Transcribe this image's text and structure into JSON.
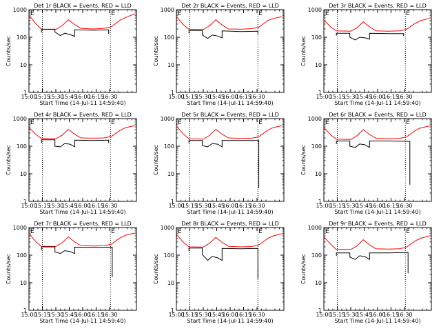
{
  "figure": {
    "background": "#ffffff",
    "events_color": "#000000",
    "lld_color": "#ff0000"
  },
  "chart_data": [
    {
      "type": "line",
      "title": "Det 1r BLACK = Events, RED = LLD",
      "xlabel": "Start Time (14-Jul-11 14:59:40)",
      "ylabel": "Counts/sec",
      "xtick_labels": [
        "15:00",
        "15:15",
        "15:30",
        "15:45",
        "16:00",
        "16:15",
        "16:30"
      ],
      "ytick_labels": [
        "1",
        "10",
        "100",
        "1000"
      ],
      "ylim": [
        1,
        1000
      ],
      "y_scale": "log",
      "x_minutes": [
        0,
        120
      ],
      "markers": [
        "E",
        "E"
      ],
      "vlines": [
        15,
        91
      ],
      "series": [
        {
          "color": "#ff0000",
          "x": [
            0,
            8,
            14,
            30,
            37,
            44,
            51,
            58,
            72,
            84,
            92,
            102,
            108,
            118
          ],
          "y": [
            630,
            300,
            195,
            190,
            260,
            430,
            290,
            210,
            200,
            210,
            240,
            420,
            520,
            700
          ]
        },
        {
          "color": "#000000",
          "x": [
            14,
            14.01,
            29,
            29.01,
            35,
            40,
            46,
            51,
            51.01,
            72,
            89,
            89.01
          ],
          "y": [
            150,
            195,
            195,
            155,
            115,
            140,
            125,
            108,
            185,
            180,
            185,
            130
          ]
        }
      ]
    },
    {
      "type": "line",
      "title": "Det 2r BLACK = Events, RED = LLD",
      "xlabel": "Start Time (14-Jul-11 14:59:40)",
      "ylabel": "Counts/sec",
      "xtick_labels": [
        "15:00",
        "15:15",
        "15:30",
        "15:45",
        "16:00",
        "16:15",
        "16:30"
      ],
      "ytick_labels": [
        "1",
        "10",
        "100",
        "1000"
      ],
      "ylim": [
        1,
        1000
      ],
      "y_scale": "log",
      "x_minutes": [
        0,
        120
      ],
      "markers": [
        "E",
        "E"
      ],
      "vlines": [
        15,
        91
      ],
      "series": [
        {
          "color": "#ff0000",
          "x": [
            0,
            8,
            14,
            30,
            37,
            44,
            51,
            58,
            72,
            84,
            92,
            102,
            108,
            118
          ],
          "y": [
            560,
            280,
            195,
            190,
            260,
            430,
            280,
            200,
            195,
            205,
            230,
            400,
            480,
            560
          ]
        },
        {
          "color": "#000000",
          "x": [
            14,
            14.01,
            29,
            29.01,
            35,
            40,
            46,
            51,
            51.01,
            72,
            91,
            91.01
          ],
          "y": [
            140,
            175,
            175,
            120,
            90,
            120,
            110,
            95,
            170,
            160,
            165,
            130
          ]
        }
      ]
    },
    {
      "type": "line",
      "title": "Det 3r BLACK = Events, RED = LLD",
      "xlabel": "Start Time (14-Jul-11 14:59:40)",
      "ylabel": "Counts/sec",
      "xtick_labels": [
        "15:00",
        "15:15",
        "15:30",
        "15:45",
        "16:00",
        "16:15",
        "16:30"
      ],
      "ytick_labels": [
        "1",
        "10",
        "100",
        "1000"
      ],
      "ylim": [
        1,
        1000
      ],
      "y_scale": "log",
      "x_minutes": [
        0,
        120
      ],
      "markers": [
        "E",
        "E"
      ],
      "vlines": [
        15,
        91
      ],
      "series": [
        {
          "color": "#ff0000",
          "x": [
            0,
            8,
            14,
            30,
            37,
            44,
            51,
            58,
            72,
            84,
            92,
            102,
            108,
            118
          ],
          "y": [
            420,
            230,
            170,
            165,
            220,
            360,
            240,
            170,
            165,
            170,
            190,
            320,
            400,
            480
          ]
        },
        {
          "color": "#000000",
          "x": [
            14,
            14.01,
            29,
            29.01,
            35,
            40,
            46,
            51,
            51.01,
            72,
            89,
            89.01
          ],
          "y": [
            115,
            140,
            140,
            100,
            80,
            100,
            95,
            85,
            140,
            135,
            135,
            110
          ]
        }
      ]
    },
    {
      "type": "line",
      "title": "Det 4r BLACK = Events, RED = LLD",
      "xlabel": "Start Time (14-Jul-11 14:59:40)",
      "ylabel": "Counts/sec",
      "xtick_labels": [
        "15:00",
        "15:15",
        "15:30",
        "15:45",
        "16:00",
        "16:15",
        "16:30"
      ],
      "ytick_labels": [
        "1",
        "10",
        "100",
        "1000"
      ],
      "ylim": [
        1,
        1000
      ],
      "y_scale": "log",
      "x_minutes": [
        0,
        120
      ],
      "markers": [
        "E",
        "E"
      ],
      "vlines": [
        15,
        91
      ],
      "series": [
        {
          "color": "#ff0000",
          "x": [
            0,
            8,
            14,
            30,
            37,
            44,
            51,
            58,
            72,
            84,
            92,
            102,
            108,
            118
          ],
          "y": [
            480,
            260,
            190,
            185,
            250,
            410,
            270,
            200,
            195,
            200,
            225,
            380,
            470,
            560
          ]
        },
        {
          "color": "#000000",
          "x": [
            14,
            14.01,
            29,
            29.01,
            35,
            40,
            46,
            51,
            51.01,
            72,
            89,
            89.01
          ],
          "y": [
            130,
            170,
            170,
            100,
            95,
            125,
            118,
            95,
            165,
            160,
            165,
            130
          ]
        }
      ]
    },
    {
      "type": "line",
      "title": "Det 5r BLACK = Events, RED = LLD",
      "xlabel": "Start Time (14-Jul-11 14:59:40)",
      "ylabel": "Counts/sec",
      "xtick_labels": [
        "15:00",
        "15:15",
        "15:30",
        "15:45",
        "16:00",
        "16:15",
        "16:30"
      ],
      "ytick_labels": [
        "1",
        "10",
        "100",
        "1000"
      ],
      "ylim": [
        1,
        1000
      ],
      "y_scale": "log",
      "x_minutes": [
        0,
        120
      ],
      "markers": [
        "E",
        "E"
      ],
      "vlines": [
        15,
        91
      ],
      "series": [
        {
          "color": "#ff0000",
          "x": [
            0,
            8,
            14,
            30,
            37,
            44,
            51,
            58,
            72,
            84,
            92,
            102,
            108,
            118
          ],
          "y": [
            530,
            270,
            185,
            180,
            245,
            410,
            270,
            200,
            190,
            195,
            220,
            380,
            470,
            560
          ]
        },
        {
          "color": "#000000",
          "x": [
            14,
            14.01,
            29,
            29.01,
            35,
            40,
            46,
            51,
            51.01,
            72,
            92,
            92.01
          ],
          "y": [
            130,
            160,
            160,
            105,
            95,
            125,
            118,
            95,
            160,
            160,
            160,
            3
          ]
        }
      ]
    },
    {
      "type": "line",
      "title": "Det 6r BLACK = Events, RED = LLD",
      "xlabel": "Start Time (14-Jul-11 14:59:40)",
      "ylabel": "Counts/sec",
      "xtick_labels": [
        "15:00",
        "15:15",
        "15:30",
        "15:45",
        "16:00",
        "16:15",
        "16:30"
      ],
      "ytick_labels": [
        "1",
        "10",
        "100",
        "1000"
      ],
      "ylim": [
        1,
        1000
      ],
      "y_scale": "log",
      "x_minutes": [
        0,
        120
      ],
      "markers": [
        "E",
        "E"
      ],
      "vlines": [
        15,
        91
      ],
      "series": [
        {
          "color": "#ff0000",
          "x": [
            0,
            8,
            14,
            30,
            37,
            44,
            51,
            58,
            72,
            84,
            92,
            102,
            108,
            118
          ],
          "y": [
            480,
            250,
            180,
            175,
            240,
            400,
            265,
            195,
            185,
            190,
            215,
            370,
            460,
            540
          ]
        },
        {
          "color": "#000000",
          "x": [
            14,
            14.01,
            29,
            29.01,
            35,
            40,
            46,
            51,
            51.01,
            72,
            96,
            96.01
          ],
          "y": [
            120,
            155,
            155,
            100,
            90,
            120,
            112,
            90,
            155,
            155,
            150,
            4
          ]
        }
      ]
    },
    {
      "type": "line",
      "title": "Det 7r BLACK = Events, RED = LLD",
      "xlabel": "Start Time (14-Jul-11 14:59:40)",
      "ylabel": "Counts/sec",
      "xtick_labels": [
        "15:00",
        "15:15",
        "15:30",
        "15:45",
        "16:00",
        "16:15",
        "16:30"
      ],
      "ytick_labels": [
        "1",
        "10",
        "100",
        "1000"
      ],
      "ylim": [
        1,
        1000
      ],
      "y_scale": "log",
      "x_minutes": [
        0,
        120
      ],
      "markers": [
        "E",
        "E"
      ],
      "vlines": [
        15,
        91
      ],
      "series": [
        {
          "color": "#ff0000",
          "x": [
            0,
            8,
            14,
            30,
            37,
            44,
            51,
            58,
            72,
            84,
            92,
            102,
            108,
            118
          ],
          "y": [
            620,
            300,
            210,
            205,
            280,
            460,
            300,
            220,
            215,
            220,
            250,
            430,
            530,
            630
          ]
        },
        {
          "color": "#000000",
          "x": [
            14,
            14.01,
            29,
            29.01,
            35,
            40,
            46,
            51,
            51.01,
            72,
            93,
            93.01
          ],
          "y": [
            150,
            200,
            200,
            130,
            115,
            145,
            135,
            115,
            195,
            190,
            195,
            16
          ]
        }
      ]
    },
    {
      "type": "line",
      "title": "Det 8r BLACK = Events, RED = LLD",
      "xlabel": "Start Time (14-Jul-11 14:59:40)",
      "ylabel": "Counts/sec",
      "xtick_labels": [
        "15:00",
        "15:15",
        "15:30",
        "15:45",
        "16:00",
        "16:15",
        "16:30"
      ],
      "ytick_labels": [
        "1",
        "10",
        "100",
        "1000"
      ],
      "ylim": [
        1,
        1000
      ],
      "y_scale": "log",
      "x_minutes": [
        0,
        120
      ],
      "markers": [
        "E",
        "E"
      ],
      "vlines": [
        15,
        91
      ],
      "series": [
        {
          "color": "#ff0000",
          "x": [
            0,
            8,
            14,
            30,
            37,
            44,
            51,
            58,
            72,
            84,
            92,
            102,
            108,
            118
          ],
          "y": [
            560,
            290,
            200,
            195,
            270,
            440,
            290,
            210,
            200,
            205,
            235,
            400,
            500,
            600
          ]
        },
        {
          "color": "#000000",
          "x": [
            14,
            14.01,
            29,
            29.01,
            35,
            40,
            46,
            51,
            51.01,
            72,
            91,
            91.01
          ],
          "y": [
            140,
            180,
            180,
            105,
            65,
            90,
            80,
            65,
            175,
            170,
            175,
            14
          ]
        }
      ]
    },
    {
      "type": "line",
      "title": "Det 9r BLACK = Events, RED = LLD",
      "xlabel": "Start Time (14-Jul-11 14:59:40)",
      "ylabel": "Counts/sec",
      "xtick_labels": [
        "15:00",
        "15:15",
        "15:30",
        "15:45",
        "16:00",
        "16:15",
        "16:30"
      ],
      "ytick_labels": [
        "1",
        "10",
        "100",
        "1000"
      ],
      "ylim": [
        1,
        1000
      ],
      "y_scale": "log",
      "x_minutes": [
        0,
        120
      ],
      "markers": [
        "E",
        "E"
      ],
      "vlines": [
        15,
        91
      ],
      "series": [
        {
          "color": "#ff0000",
          "x": [
            0,
            8,
            14,
            30,
            37,
            44,
            51,
            58,
            72,
            84,
            92,
            102,
            108,
            118
          ],
          "y": [
            460,
            240,
            160,
            160,
            215,
            360,
            235,
            170,
            165,
            170,
            190,
            330,
            410,
            500
          ]
        },
        {
          "color": "#000000",
          "x": [
            14,
            14.01,
            29,
            29.01,
            35,
            40,
            46,
            51,
            51.01,
            72,
            94,
            94.01
          ],
          "y": [
            95,
            120,
            120,
            85,
            70,
            95,
            88,
            70,
            120,
            120,
            125,
            22
          ]
        }
      ]
    }
  ]
}
